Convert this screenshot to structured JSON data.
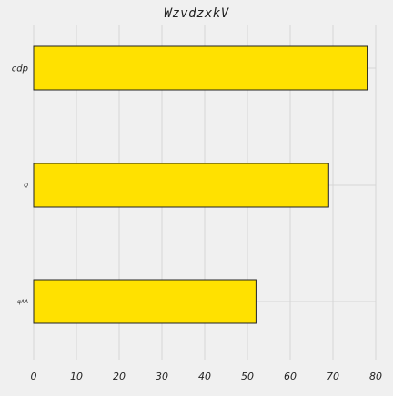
{
  "chart_data": {
    "type": "bar",
    "orientation": "horizontal",
    "title": "WzvdzxkV",
    "xlabel": "",
    "ylabel": "",
    "categories": [
      "cdp",
      "Q",
      "qAA"
    ],
    "values": [
      78,
      69,
      52
    ],
    "xlim": [
      0,
      80
    ],
    "xticks": [
      0,
      10,
      20,
      30,
      40,
      50,
      60,
      70,
      80
    ],
    "grid": true,
    "colors": {
      "bar_fill": "#ffe100",
      "bar_edge": "#222222",
      "grid": "#d6d6d6",
      "background": "#f0f0f0"
    }
  }
}
